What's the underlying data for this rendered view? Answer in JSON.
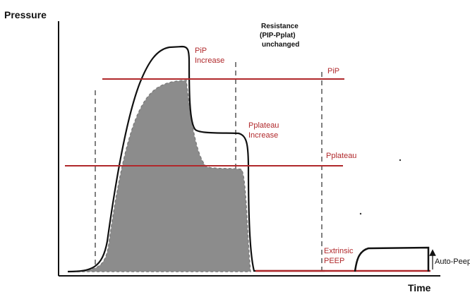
{
  "diagram": {
    "axes": {
      "y_label": "Pressure",
      "x_label": "Time"
    },
    "annotation": {
      "line1": "Resistance",
      "line2": "(PIP-Pplat)",
      "line3": "unchanged"
    },
    "labels": {
      "pip_increase": {
        "line1": "PiP",
        "line2": "Increase"
      },
      "pplateau_increase": {
        "line1": "Pplateau",
        "line2": "Increase"
      },
      "pip": "PiP",
      "pplateau": "Pplateau",
      "extrinsic_peep": {
        "line1": "Extrinsic",
        "line2": "PEEP"
      },
      "auto_peep": "Auto-Peep"
    },
    "colors": {
      "reference_lines": "#b0282b",
      "baseline_waveform_fill": "#8c8c8c",
      "increased_waveform_stroke": "#111111",
      "axis": "#111111",
      "dashed_markers": "#555555"
    }
  }
}
